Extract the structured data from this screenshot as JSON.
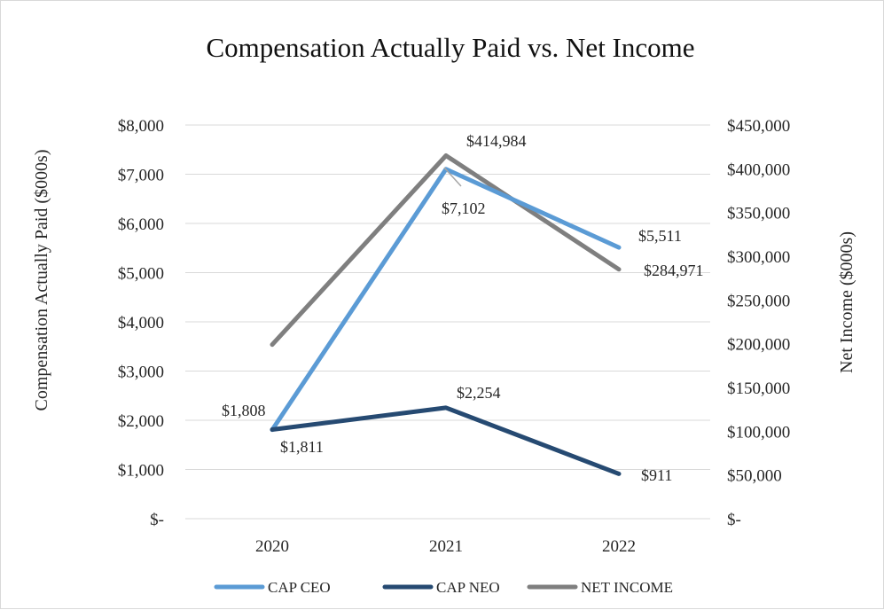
{
  "chart_data": {
    "type": "line",
    "title": "Compensation Actually Paid vs. Net Income",
    "categories": [
      "2020",
      "2021",
      "2022"
    ],
    "y_left": {
      "label": "Compensation Actually Paid ($000s)",
      "range": [
        0,
        8000
      ],
      "ticks": [
        0,
        1000,
        2000,
        3000,
        4000,
        5000,
        6000,
        7000,
        8000
      ],
      "tick_labels": [
        "$-",
        "$1,000",
        "$2,000",
        "$3,000",
        "$4,000",
        "$5,000",
        "$6,000",
        "$7,000",
        "$8,000"
      ]
    },
    "y_right": {
      "label": "Net Income ($000s)",
      "range": [
        0,
        450000
      ],
      "ticks": [
        0,
        50000,
        100000,
        150000,
        200000,
        250000,
        300000,
        350000,
        400000,
        450000
      ],
      "tick_labels": [
        "$-",
        "$50,000",
        "$100,000",
        "$150,000",
        "$200,000",
        "$250,000",
        "$300,000",
        "$350,000",
        "$400,000",
        "$450,000"
      ]
    },
    "series": [
      {
        "name": "CAP CEO",
        "axis": "left",
        "color": "#5b9bd5",
        "values": [
          1808,
          7102,
          5511
        ],
        "data_labels": [
          "$1,808",
          "$7,102",
          "$5,511"
        ]
      },
      {
        "name": "CAP NEO",
        "axis": "left",
        "color": "#264a72",
        "values": [
          1811,
          2254,
          911
        ],
        "data_labels": [
          "$1,811",
          "$2,254",
          "$911"
        ]
      },
      {
        "name": "NET INCOME",
        "axis": "right",
        "color": "#7f7f7f",
        "values": [
          199000,
          414984,
          284971
        ],
        "data_labels": [
          "",
          "$414,984",
          "$284,971"
        ]
      }
    ],
    "gridlines": "horizontal",
    "legend_position": "bottom"
  }
}
